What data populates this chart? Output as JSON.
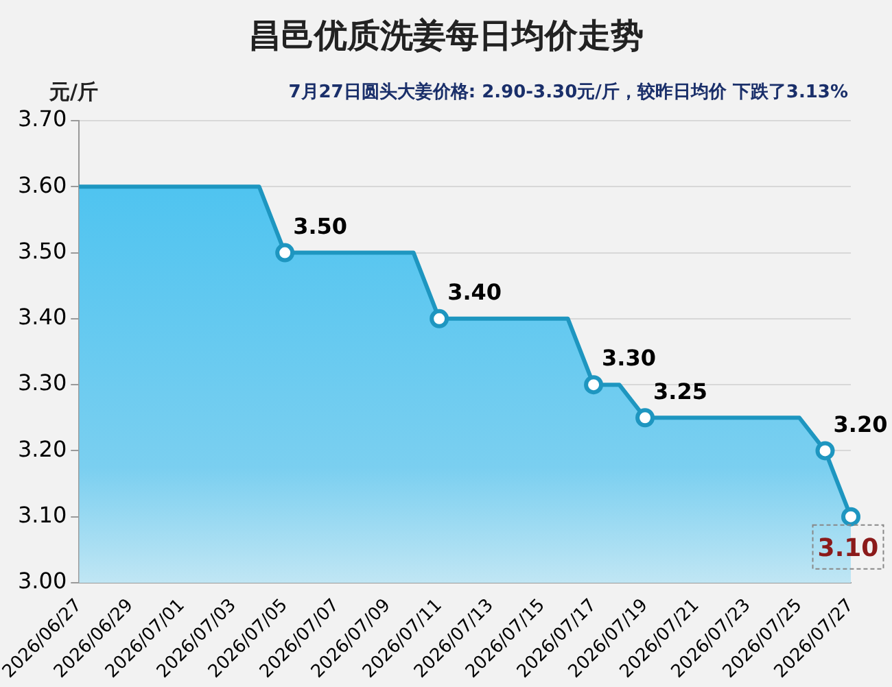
{
  "chart_data": {
    "type": "area",
    "title": "昌邑优质洗姜每日均价走势",
    "subtitle": "7月27日圆头大姜价格: 2.90-3.30元/斤，较昨日均价 下跌了3.13%",
    "ylabel": "元/斤",
    "categories": [
      "2026/06/27",
      null,
      "2026/06/29",
      null,
      "2026/07/01",
      null,
      "2026/07/03",
      null,
      "2026/07/05",
      null,
      "2026/07/07",
      null,
      "2026/07/09",
      null,
      "2026/07/11",
      null,
      "2026/07/13",
      null,
      "2026/07/15",
      null,
      "2026/07/17",
      null,
      "2026/07/19",
      null,
      "2026/07/21",
      null,
      "2026/07/23",
      null,
      "2026/07/25",
      null,
      "2026/07/27"
    ],
    "series": [
      {
        "color": "#1e96c0",
        "values": [
          3.6,
          3.6,
          3.6,
          3.6,
          3.6,
          3.6,
          3.6,
          3.6,
          3.5,
          3.5,
          3.5,
          3.5,
          3.5,
          3.5,
          3.4,
          3.4,
          3.4,
          3.4,
          3.4,
          3.4,
          3.3,
          3.3,
          3.25,
          3.25,
          3.25,
          3.25,
          3.25,
          3.25,
          3.25,
          3.2,
          3.1
        ],
        "value_labels": [
          null,
          null,
          null,
          null,
          null,
          null,
          null,
          null,
          "3.50",
          null,
          null,
          null,
          null,
          null,
          "3.40",
          null,
          null,
          null,
          null,
          null,
          "3.30",
          null,
          "3.25",
          null,
          null,
          null,
          null,
          null,
          null,
          "3.20",
          "3.10"
        ]
      }
    ],
    "ylim": [
      3.0,
      3.7
    ],
    "yticks": [
      {
        "value": 3.0,
        "label": "3.00"
      },
      {
        "value": 3.1,
        "label": "3.10"
      },
      {
        "value": 3.2,
        "label": "3.20"
      },
      {
        "value": 3.3,
        "label": "3.30"
      },
      {
        "value": 3.4,
        "label": "3.40"
      },
      {
        "value": 3.5,
        "label": "3.50"
      },
      {
        "value": 3.6,
        "label": "3.60"
      },
      {
        "value": 3.7,
        "label": "3.70"
      }
    ],
    "grid": "y",
    "legend": false,
    "line_style": "solid"
  }
}
